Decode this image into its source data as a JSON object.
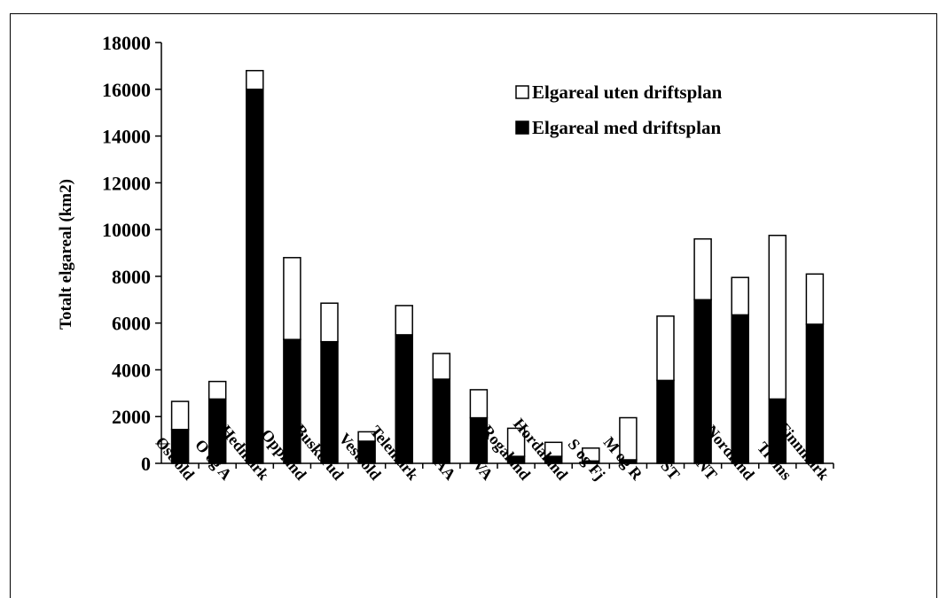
{
  "chart_data": {
    "type": "bar",
    "stacked": true,
    "categories": [
      "Østfold",
      "O og A",
      "Hedmark",
      "Oppland",
      "Buskerud",
      "Vestfold",
      "Telemark",
      "AA",
      "VA",
      "Rogaland",
      "Hordaland",
      "S og Fj",
      "M og R",
      "ST",
      "NT",
      "Nordland",
      "Troms",
      "Finnmark"
    ],
    "series": [
      {
        "name": "Elgareal med driftsplan",
        "color": "#000000",
        "values": [
          1450,
          2750,
          16000,
          5300,
          5200,
          950,
          5500,
          3600,
          1950,
          300,
          300,
          100,
          150,
          3550,
          7000,
          6350,
          2750,
          5950
        ]
      },
      {
        "name": "Elgareal uten driftsplan",
        "color": "#ffffff",
        "values": [
          1200,
          750,
          800,
          3500,
          1650,
          400,
          1250,
          1100,
          1200,
          1200,
          600,
          550,
          1800,
          2750,
          2600,
          1600,
          7000,
          2150
        ]
      }
    ],
    "ylabel": "Totalt elgareal (km2)",
    "xlabel": "",
    "ylim": [
      0,
      18000
    ],
    "yticks": [
      "0",
      "2000",
      "4000",
      "6000",
      "8000",
      "10000",
      "12000",
      "14000",
      "16000",
      "18000"
    ],
    "legend": {
      "position": "top-right",
      "entries": [
        "Elgareal uten driftsplan",
        "Elgareal med driftsplan"
      ]
    },
    "grid": false
  }
}
